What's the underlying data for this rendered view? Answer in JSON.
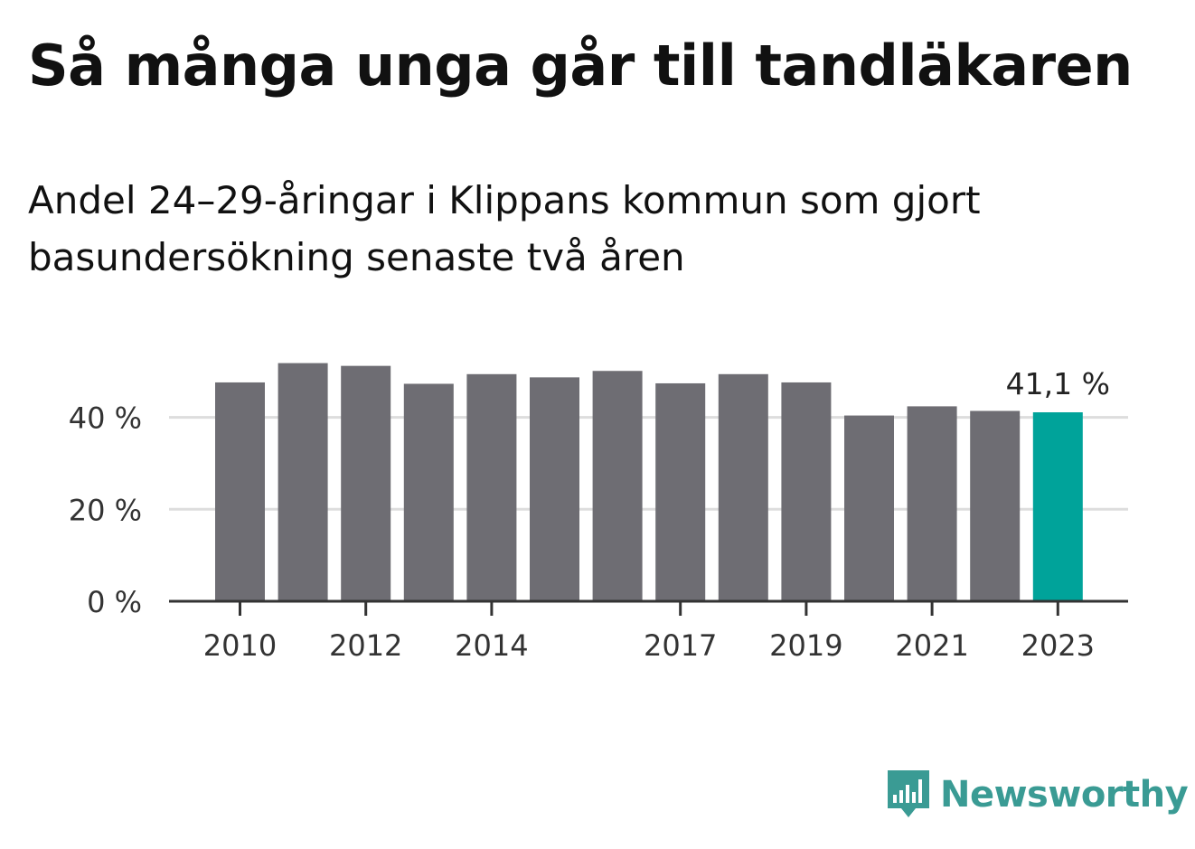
{
  "title": "Så många unga går till tandläkaren",
  "subtitle": "Andel 24–29-åringar i Klippans kommun som gjort basundersökning senaste två åren",
  "brand": {
    "name": "Newsworthy",
    "icon": "newsworthy-logo-icon",
    "color": "#3a9b94"
  },
  "colors": {
    "bar": "#6e6d73",
    "highlight": "#00a39a",
    "grid": "#dddddd",
    "axis": "#333333",
    "text": "#333333"
  },
  "chart_data": {
    "type": "bar",
    "categories": [
      "2010",
      "2011",
      "2012",
      "2013",
      "2014",
      "2015",
      "2016",
      "2017",
      "2018",
      "2019",
      "2020",
      "2021",
      "2022",
      "2023"
    ],
    "values": [
      47.6,
      51.8,
      51.2,
      47.3,
      49.4,
      48.7,
      50.1,
      47.4,
      49.4,
      47.6,
      40.4,
      42.4,
      41.4,
      41.1
    ],
    "x_tick_labels": [
      "2010",
      "2012",
      "2014",
      "2017",
      "2019",
      "2021",
      "2023"
    ],
    "y_ticks": [
      0,
      20,
      40
    ],
    "y_tick_labels": [
      "0 %",
      "20 %",
      "40 %"
    ],
    "ylim": [
      0,
      55
    ],
    "highlight_category": "2023",
    "annotation": {
      "category": "2023",
      "text": "41,1 %"
    },
    "grid": true,
    "legend": "none"
  }
}
